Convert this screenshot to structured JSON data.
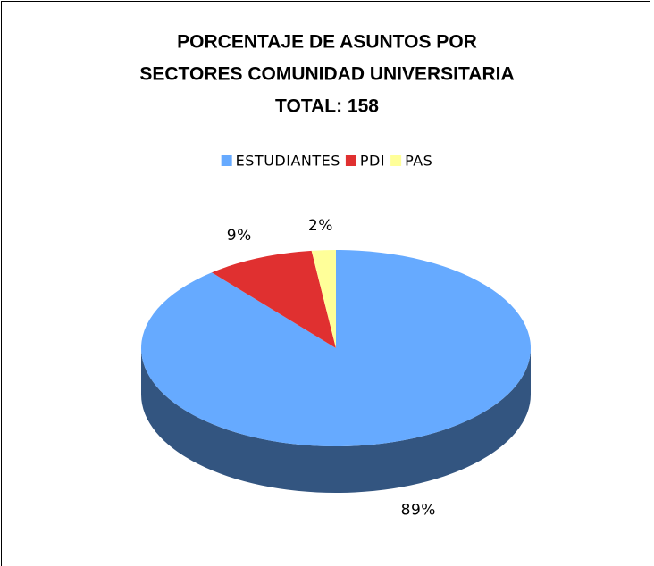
{
  "chart_data": {
    "type": "pie3d",
    "title": [
      "PORCENTAJE DE ASUNTOS POR",
      "SECTORES COMUNIDAD UNIVERSITARIA",
      "TOTAL: 158"
    ],
    "categories": [
      "ESTUDIANTES",
      "PDI",
      "PAS"
    ],
    "values": [
      89,
      9,
      2
    ],
    "value_labels": [
      "89%",
      "9%",
      "2%"
    ],
    "colors": [
      "#66aaff",
      "#e03030",
      "#ffff99"
    ],
    "legend": "top"
  }
}
